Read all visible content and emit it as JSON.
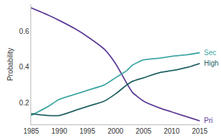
{
  "chart_data": {
    "type": "line",
    "y_label": "Probability",
    "x": [
      1985,
      1988,
      1990,
      1993,
      1995,
      1998,
      2000,
      2002,
      2003,
      2005,
      2008,
      2010,
      2013,
      2015
    ],
    "series": [
      {
        "name": "Pri",
        "color": "#5b3a96",
        "values": [
          0.73,
          0.69,
          0.66,
          0.61,
          0.57,
          0.5,
          0.42,
          0.31,
          0.26,
          0.21,
          0.17,
          0.15,
          0.12,
          0.1
        ]
      },
      {
        "name": "Sec",
        "color": "#3fa7a3",
        "values": [
          0.13,
          0.18,
          0.22,
          0.25,
          0.27,
          0.3,
          0.34,
          0.38,
          0.41,
          0.44,
          0.45,
          0.46,
          0.47,
          0.48
        ]
      },
      {
        "name": "High",
        "color": "#1f5f63",
        "values": [
          0.14,
          0.13,
          0.13,
          0.16,
          0.18,
          0.21,
          0.25,
          0.3,
          0.32,
          0.34,
          0.37,
          0.38,
          0.4,
          0.42
        ]
      }
    ],
    "xlim": [
      1985,
      2015
    ],
    "xticks": [
      1985,
      1990,
      1995,
      2000,
      2005,
      2010,
      2015
    ],
    "ylim": [
      0.08,
      0.75
    ],
    "yticks": [
      0.2,
      0.4,
      0.6
    ],
    "grid": false
  }
}
